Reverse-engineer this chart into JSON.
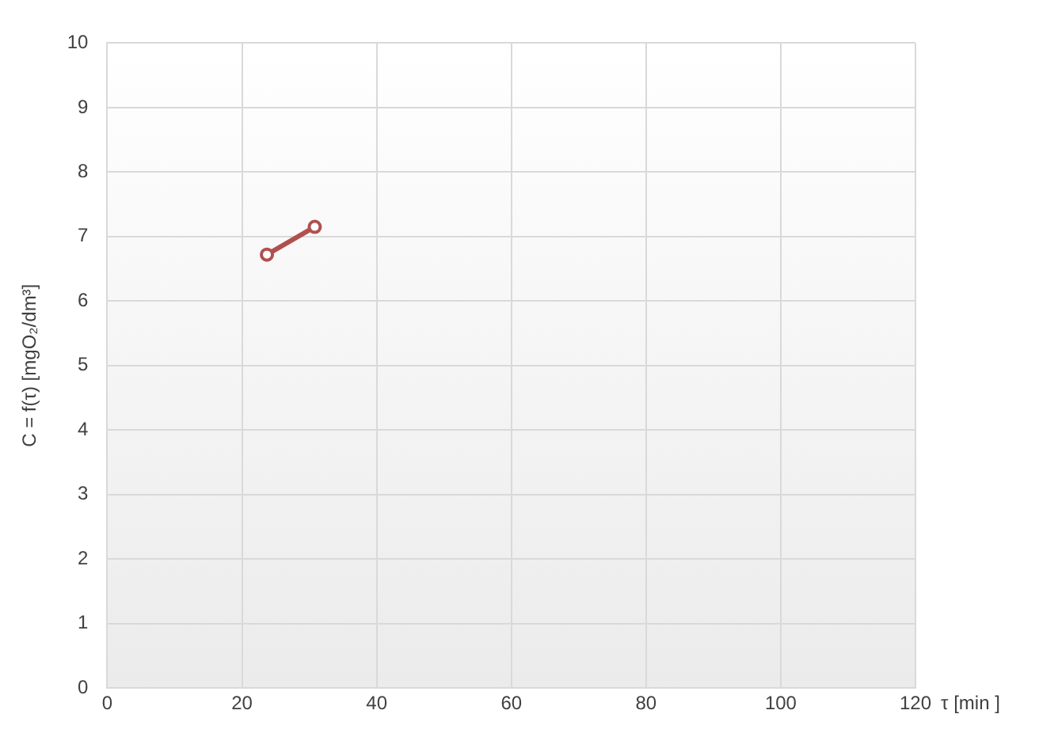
{
  "chart_data": {
    "type": "line",
    "xlabel": "τ [min ]",
    "ylabel": "C = f(τ) [mgO₂/dm³]",
    "series": [
      {
        "color": "#b0504e",
        "x": [
          23.7,
          30.8
        ],
        "values": [
          6.72,
          7.15
        ]
      }
    ],
    "xlim": [
      0,
      120
    ],
    "xticks": [
      0,
      20,
      40,
      60,
      80,
      100,
      120
    ],
    "ylim": [
      0,
      10
    ],
    "yticks": [
      0,
      1,
      2,
      3,
      4,
      5,
      6,
      7,
      8,
      9,
      10
    ],
    "grid": true,
    "legend": false,
    "marker": "circle",
    "line_style": "solid"
  }
}
